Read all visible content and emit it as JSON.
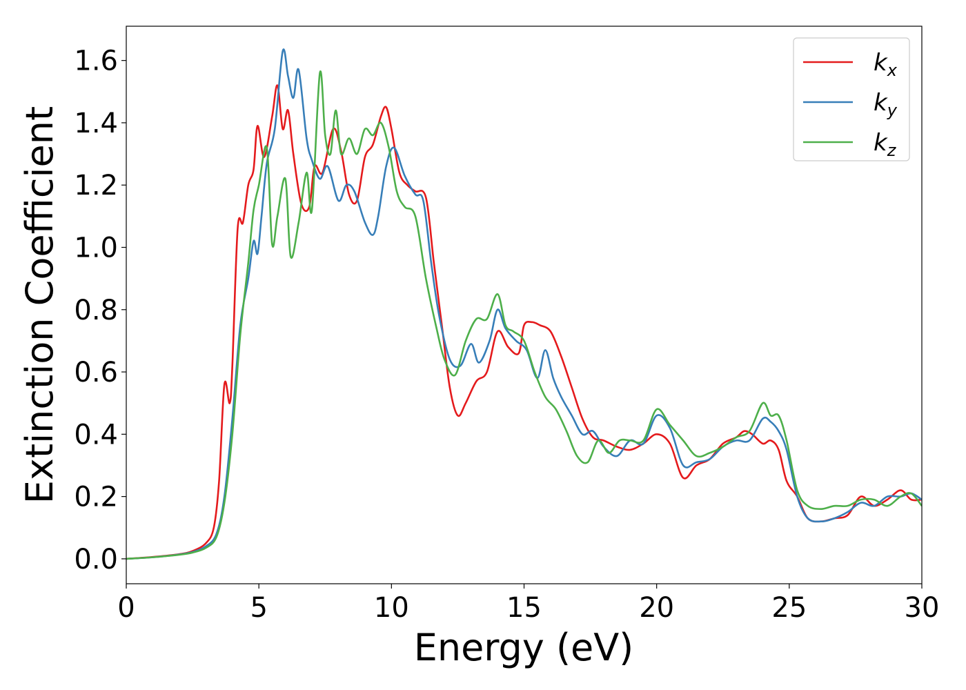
{
  "chart_data": {
    "type": "line",
    "title": "",
    "xlabel": "Energy (eV)",
    "ylabel": "Extinction Coefficient",
    "xlim": [
      0,
      30
    ],
    "ylim": [
      -0.08,
      1.71
    ],
    "xticks": [
      0,
      5,
      10,
      15,
      20,
      25,
      30
    ],
    "xtick_labels": [
      "0",
      "5",
      "10",
      "15",
      "20",
      "25",
      "30"
    ],
    "yticks": [
      0.0,
      0.2,
      0.4,
      0.6,
      0.8,
      1.0,
      1.2,
      1.4,
      1.6
    ],
    "ytick_labels": [
      "0.0",
      "0.2",
      "0.4",
      "0.6",
      "0.8",
      "1.0",
      "1.2",
      "1.4",
      "1.6"
    ],
    "grid": false,
    "legend_position": "top-right",
    "series": [
      {
        "name": "k",
        "subscript": "x",
        "color": "#e41a1c",
        "x": [
          0,
          1,
          2,
          2.5,
          3,
          3.3,
          3.5,
          3.7,
          3.9,
          4.0,
          4.2,
          4.4,
          4.6,
          4.8,
          4.95,
          5.2,
          5.5,
          5.7,
          5.9,
          6.1,
          6.3,
          6.6,
          6.9,
          7.1,
          7.4,
          7.8,
          8.1,
          8.4,
          8.7,
          9.0,
          9.3,
          9.6,
          9.8,
          10.0,
          10.3,
          10.6,
          10.9,
          11.3,
          11.6,
          11.9,
          12.2,
          12.5,
          12.8,
          13.2,
          13.6,
          14.0,
          14.4,
          14.8,
          15.0,
          15.3,
          15.6,
          16.0,
          16.4,
          16.8,
          17.2,
          17.6,
          18.0,
          18.5,
          19.0,
          19.5,
          20.0,
          20.5,
          21.0,
          21.5,
          22.0,
          22.5,
          23.0,
          23.3,
          23.6,
          24.0,
          24.3,
          24.6,
          24.9,
          25.3,
          25.7,
          26.2,
          26.7,
          27.2,
          27.7,
          28.2,
          28.7,
          29.2,
          29.6,
          30.0
        ],
        "y": [
          0.0,
          0.006,
          0.015,
          0.025,
          0.05,
          0.1,
          0.25,
          0.56,
          0.5,
          0.62,
          1.06,
          1.08,
          1.2,
          1.25,
          1.39,
          1.29,
          1.42,
          1.52,
          1.38,
          1.44,
          1.3,
          1.14,
          1.13,
          1.26,
          1.24,
          1.38,
          1.31,
          1.17,
          1.15,
          1.29,
          1.33,
          1.42,
          1.45,
          1.38,
          1.24,
          1.2,
          1.18,
          1.16,
          0.95,
          0.75,
          0.55,
          0.46,
          0.5,
          0.57,
          0.6,
          0.73,
          0.68,
          0.66,
          0.75,
          0.76,
          0.75,
          0.73,
          0.65,
          0.55,
          0.45,
          0.39,
          0.38,
          0.36,
          0.35,
          0.37,
          0.4,
          0.37,
          0.26,
          0.3,
          0.32,
          0.37,
          0.39,
          0.41,
          0.4,
          0.37,
          0.38,
          0.35,
          0.25,
          0.2,
          0.13,
          0.12,
          0.13,
          0.14,
          0.2,
          0.17,
          0.19,
          0.22,
          0.19,
          0.19
        ]
      },
      {
        "name": "k",
        "subscript": "y",
        "color": "#377eb8",
        "x": [
          0,
          1,
          2,
          2.5,
          3,
          3.4,
          3.7,
          4.0,
          4.3,
          4.6,
          4.8,
          4.95,
          5.1,
          5.3,
          5.6,
          5.9,
          6.1,
          6.3,
          6.5,
          6.8,
          7.0,
          7.3,
          7.6,
          8.0,
          8.3,
          8.6,
          9.0,
          9.3,
          9.5,
          9.8,
          10.1,
          10.5,
          10.9,
          11.2,
          11.5,
          11.8,
          12.2,
          12.6,
          13.0,
          13.3,
          13.7,
          14.0,
          14.3,
          14.7,
          15.1,
          15.5,
          15.8,
          16.1,
          16.4,
          16.8,
          17.2,
          17.6,
          18.0,
          18.5,
          19.0,
          19.5,
          20.0,
          20.5,
          21.0,
          21.5,
          22.0,
          22.5,
          23.0,
          23.5,
          24.0,
          24.3,
          24.6,
          24.9,
          25.3,
          25.7,
          26.2,
          26.7,
          27.2,
          27.7,
          28.2,
          28.7,
          29.2,
          29.6,
          30.0
        ],
        "y": [
          0.0,
          0.005,
          0.014,
          0.022,
          0.04,
          0.08,
          0.2,
          0.45,
          0.75,
          0.9,
          1.02,
          0.98,
          1.1,
          1.27,
          1.38,
          1.63,
          1.55,
          1.48,
          1.57,
          1.35,
          1.28,
          1.22,
          1.26,
          1.15,
          1.2,
          1.18,
          1.08,
          1.04,
          1.1,
          1.26,
          1.32,
          1.23,
          1.17,
          1.15,
          0.95,
          0.78,
          0.64,
          0.62,
          0.69,
          0.63,
          0.7,
          0.8,
          0.74,
          0.7,
          0.67,
          0.58,
          0.67,
          0.58,
          0.52,
          0.46,
          0.4,
          0.41,
          0.36,
          0.33,
          0.38,
          0.37,
          0.46,
          0.42,
          0.3,
          0.31,
          0.32,
          0.36,
          0.38,
          0.38,
          0.45,
          0.44,
          0.41,
          0.35,
          0.2,
          0.13,
          0.12,
          0.13,
          0.15,
          0.18,
          0.17,
          0.2,
          0.2,
          0.21,
          0.19
        ]
      },
      {
        "name": "k",
        "subscript": "z",
        "color": "#4daf4a",
        "x": [
          0,
          1,
          2,
          2.5,
          3,
          3.4,
          3.7,
          4.0,
          4.3,
          4.6,
          4.8,
          5.0,
          5.3,
          5.5,
          5.7,
          6.0,
          6.2,
          6.5,
          6.8,
          7.0,
          7.3,
          7.5,
          7.7,
          7.9,
          8.1,
          8.4,
          8.7,
          9.0,
          9.3,
          9.6,
          9.9,
          10.2,
          10.5,
          10.9,
          11.3,
          11.7,
          12.0,
          12.4,
          12.8,
          13.2,
          13.6,
          14.0,
          14.3,
          14.6,
          15.0,
          15.4,
          15.8,
          16.2,
          16.6,
          17.0,
          17.4,
          17.8,
          18.2,
          18.6,
          19.0,
          19.5,
          20.0,
          20.5,
          21.0,
          21.5,
          22.0,
          22.5,
          23.0,
          23.5,
          24.0,
          24.3,
          24.6,
          24.9,
          25.3,
          25.7,
          26.2,
          26.7,
          27.2,
          27.7,
          28.2,
          28.7,
          29.2,
          29.6,
          30.0
        ],
        "y": [
          0.0,
          0.005,
          0.013,
          0.02,
          0.035,
          0.07,
          0.18,
          0.4,
          0.72,
          0.95,
          1.12,
          1.2,
          1.32,
          1.01,
          1.1,
          1.22,
          0.97,
          1.08,
          1.24,
          1.12,
          1.56,
          1.36,
          1.3,
          1.44,
          1.3,
          1.35,
          1.3,
          1.38,
          1.36,
          1.4,
          1.32,
          1.18,
          1.13,
          1.1,
          0.9,
          0.74,
          0.64,
          0.59,
          0.7,
          0.77,
          0.77,
          0.85,
          0.75,
          0.73,
          0.7,
          0.6,
          0.52,
          0.48,
          0.41,
          0.33,
          0.31,
          0.38,
          0.34,
          0.38,
          0.38,
          0.38,
          0.48,
          0.43,
          0.38,
          0.33,
          0.34,
          0.36,
          0.39,
          0.41,
          0.5,
          0.46,
          0.46,
          0.38,
          0.22,
          0.17,
          0.16,
          0.17,
          0.17,
          0.19,
          0.19,
          0.17,
          0.2,
          0.21,
          0.17
        ]
      }
    ]
  }
}
